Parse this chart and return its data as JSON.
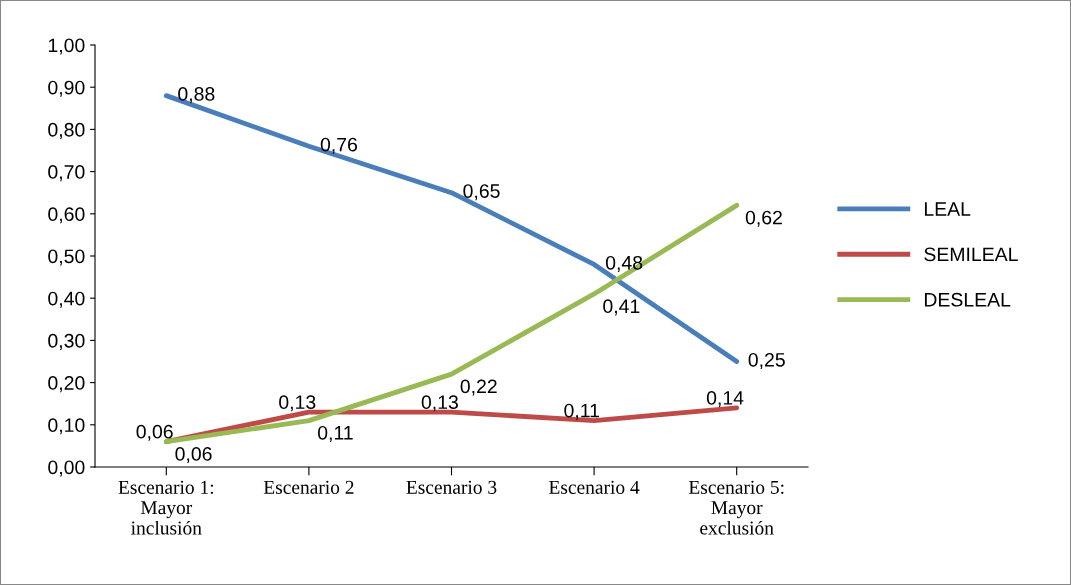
{
  "chart_data": {
    "type": "line",
    "categories": [
      "Escenario 1:\nMayor\ninclusión",
      "Escenario 2",
      "Escenario 3",
      "Escenario 4",
      "Escenario 5:\nMayor\nexclusión"
    ],
    "series": [
      {
        "name": "LEAL",
        "color": "#4a7ebb",
        "values": [
          0.88,
          0.76,
          0.65,
          0.48,
          0.25
        ],
        "value_labels": [
          "0,88",
          "0,76",
          "0,65",
          "0,48",
          "0,25"
        ]
      },
      {
        "name": "SEMILEAL",
        "color": "#be4b48",
        "values": [
          0.06,
          0.13,
          0.13,
          0.11,
          0.14
        ],
        "value_labels": [
          "0,06",
          "0,13",
          "0,13",
          "0,11",
          "0,14"
        ]
      },
      {
        "name": "DESLEAL",
        "color": "#98b954",
        "values": [
          0.06,
          0.11,
          0.22,
          0.41,
          0.62
        ],
        "value_labels": [
          "0,06",
          "0,11",
          "0,22",
          "0,41",
          "0,62"
        ]
      }
    ],
    "ylim": [
      0,
      1
    ],
    "yticks": [
      {
        "value": 0,
        "label": "0,00"
      },
      {
        "value": 0.1,
        "label": "0,10"
      },
      {
        "value": 0.2,
        "label": "0,20"
      },
      {
        "value": 0.3,
        "label": "0,30"
      },
      {
        "value": 0.4,
        "label": "0,40"
      },
      {
        "value": 0.5,
        "label": "0,50"
      },
      {
        "value": 0.6,
        "label": "0,60"
      },
      {
        "value": 0.7,
        "label": "0,70"
      },
      {
        "value": 0.8,
        "label": "0,80"
      },
      {
        "value": 0.9,
        "label": "0,90"
      },
      {
        "value": 1.0,
        "label": "1,00"
      }
    ],
    "grid": false,
    "legend": "right",
    "marker": "none",
    "line_style": "solid"
  }
}
